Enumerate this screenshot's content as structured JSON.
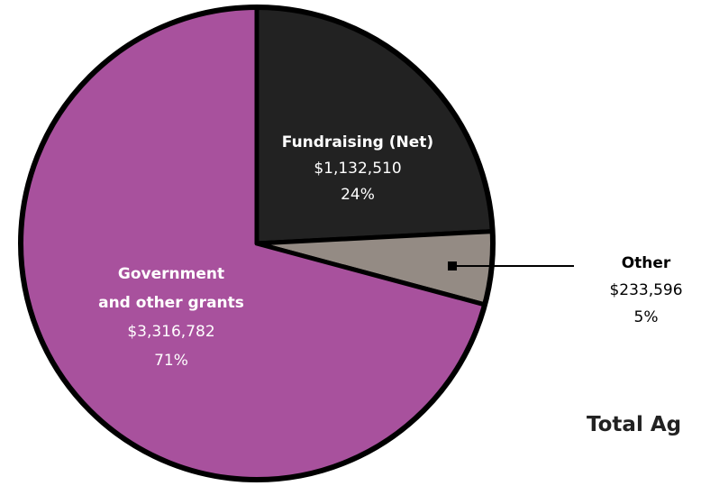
{
  "chart_data": {
    "type": "pie",
    "start_angle_deg": 0,
    "direction": "clockwise",
    "slices": [
      {
        "key": "fundraising",
        "name_lines": [
          "Fundraising (Net)"
        ],
        "value": 1132510,
        "value_label": "$1,132,510",
        "percent": 24,
        "percent_label": "24%",
        "color": "#222222",
        "text_color": "#ffffff"
      },
      {
        "key": "other",
        "name_lines": [
          "Other"
        ],
        "value": 233596,
        "value_label": "$233,596",
        "percent": 5,
        "percent_label": "5%",
        "color": "#948b84",
        "text_color": "#000000"
      },
      {
        "key": "government",
        "name_lines": [
          "Government",
          "and other grants"
        ],
        "value": 3316782,
        "value_label": "$3,316,782",
        "percent": 71,
        "percent_label": "71%",
        "color": "#a8519d",
        "text_color": "#ffffff"
      }
    ],
    "outline_color": "#000000",
    "total_label": "Total Ag"
  }
}
